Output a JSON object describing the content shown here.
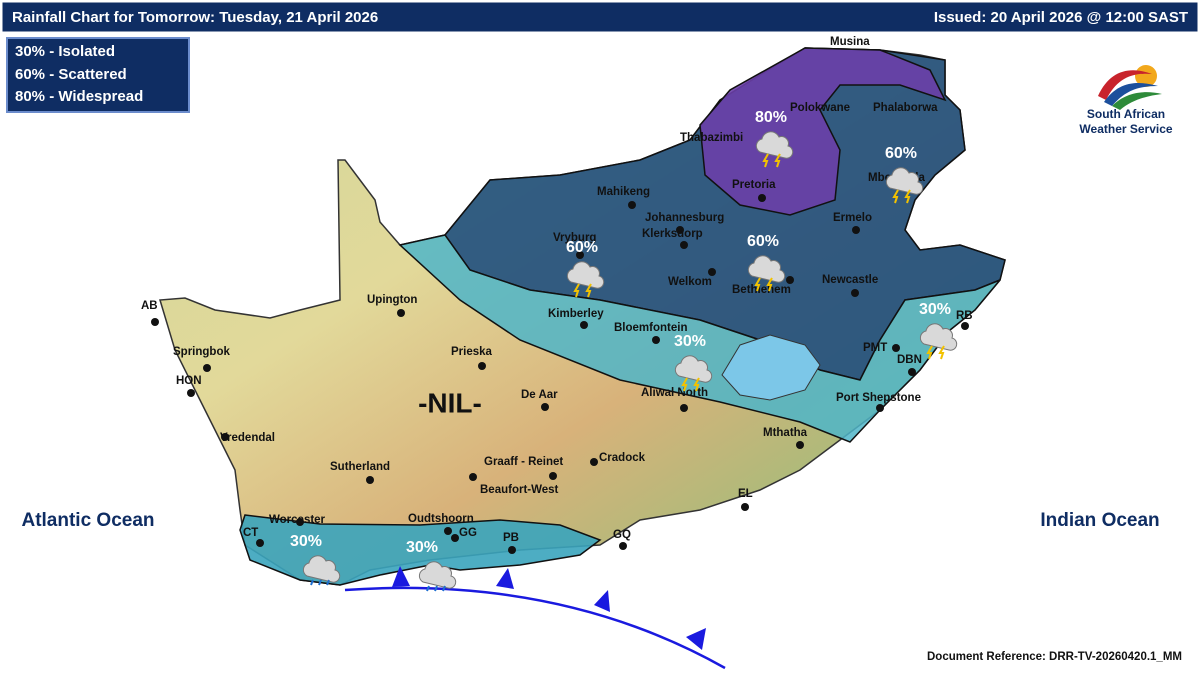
{
  "header": {
    "title": "Rainfall Chart for Tomorrow: Tuesday, 21 April 2026",
    "issued": "Issued: 20 April 2026 @ 12:00 SAST"
  },
  "legend": [
    "30% - Isolated",
    "60% - Scattered",
    "80% - Widespread"
  ],
  "logo": {
    "line1": "South African",
    "line2": "Weather Service"
  },
  "oceans": [
    "Atlantic Ocean",
    "Indian Ocean"
  ],
  "nil_label": "-NIL-",
  "zones": [
    "80%",
    "60%",
    "60%",
    "60%",
    "30%",
    "30%",
    "30%",
    "30%"
  ],
  "cities": [
    "Musina",
    "Polokwane",
    "Phalaborwa",
    "Thabazimbi",
    "Pretoria",
    "Mbombela",
    "Mahikeng",
    "Johannesburg",
    "Klerksdorp",
    "Ermelo",
    "Vryburg",
    "Welkom",
    "Bethlehem",
    "Newcastle",
    "Upington",
    "Kimberley",
    "Bloemfontein",
    "RB",
    "AB",
    "Springbok",
    "Prieska",
    "PMT",
    "DBN",
    "HON",
    "De Aar",
    "Aliwal North",
    "Port Shepstone",
    "Vredendal",
    "Mthatha",
    "Sutherland",
    "Graaff - Reinet",
    "Cradock",
    "Beaufort-West",
    "EL",
    "Worcester",
    "Oudtshoorn",
    "CT",
    "GG",
    "PB",
    "GQ"
  ],
  "footer": "Document Reference: DRR-TV-20260420.1_MM"
}
